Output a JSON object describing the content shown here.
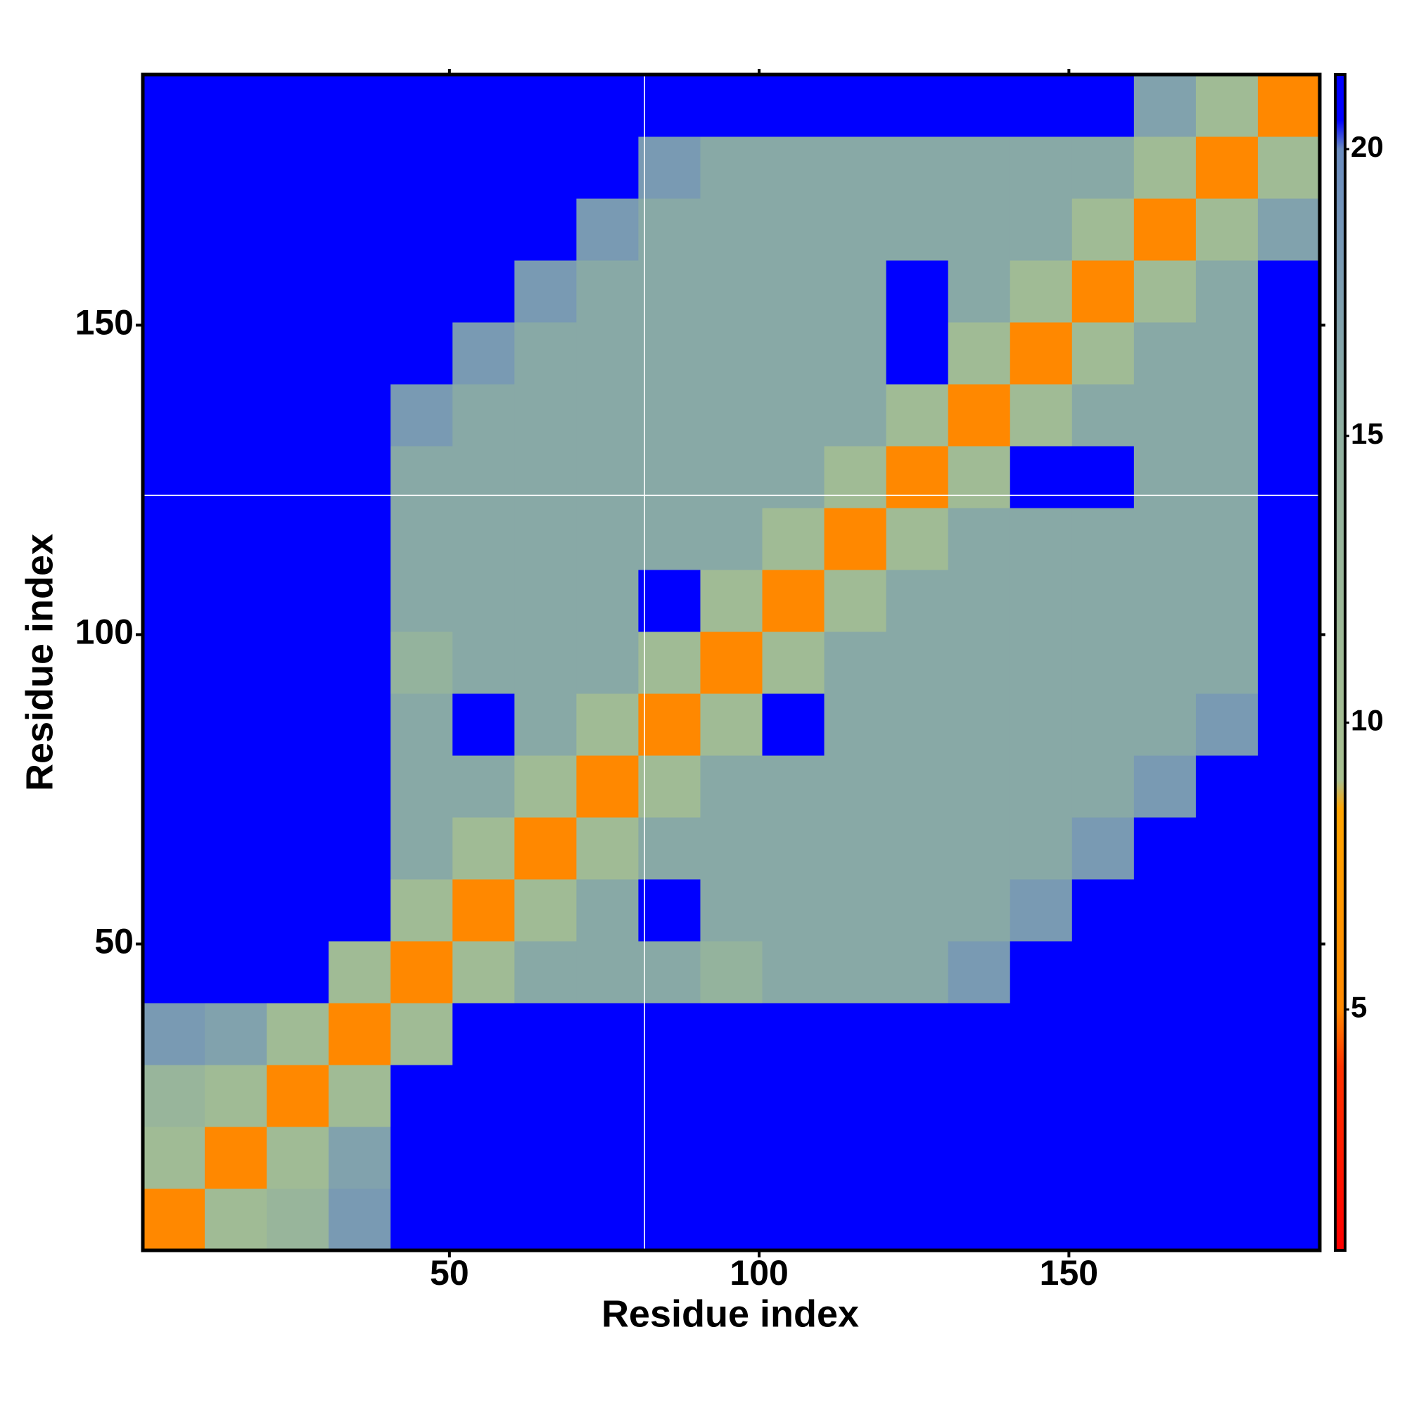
{
  "chart_data": {
    "type": "heatmap",
    "xlabel": "Residue index",
    "ylabel": "Residue index",
    "bins": [
      0.5,
      10.5,
      20.5,
      30.5,
      40.5,
      50.5,
      60.5,
      70.5,
      80.5,
      90.5,
      100.5,
      110.5,
      120.5,
      130.5,
      140.5,
      150.5,
      160.5,
      170.5,
      180.5,
      190.5
    ],
    "xlim": [
      0.5,
      190.5
    ],
    "ylim": [
      0.5,
      190.5
    ],
    "xticks": [
      50,
      100,
      150
    ],
    "yticks": [
      50,
      100,
      150
    ],
    "values": [
      [
        5,
        11,
        13,
        18,
        21,
        21,
        21,
        21,
        21,
        21,
        21,
        21,
        21,
        21,
        21,
        21,
        21,
        21,
        21
      ],
      [
        11,
        5,
        11,
        17,
        21,
        21,
        21,
        21,
        21,
        21,
        21,
        21,
        21,
        21,
        21,
        21,
        21,
        21,
        21
      ],
      [
        13,
        11,
        5,
        11,
        21,
        21,
        21,
        21,
        21,
        21,
        21,
        21,
        21,
        21,
        21,
        21,
        21,
        21,
        21
      ],
      [
        18,
        17,
        11,
        5,
        11,
        21,
        21,
        21,
        21,
        21,
        21,
        21,
        21,
        21,
        21,
        21,
        21,
        21,
        21
      ],
      [
        21,
        21,
        21,
        11,
        5,
        11,
        16,
        16,
        16,
        14,
        16,
        16,
        16,
        18,
        21,
        21,
        21,
        21,
        21
      ],
      [
        21,
        21,
        21,
        21,
        11,
        5,
        11,
        16,
        21,
        16,
        16,
        16,
        16,
        16,
        18,
        21,
        21,
        21,
        21
      ],
      [
        21,
        21,
        21,
        21,
        16,
        11,
        5,
        11,
        16,
        16,
        16,
        16,
        16,
        16,
        16,
        18,
        21,
        21,
        21
      ],
      [
        21,
        21,
        21,
        21,
        16,
        16,
        11,
        5,
        11,
        16,
        16,
        16,
        16,
        16,
        16,
        16,
        18,
        21,
        21
      ],
      [
        21,
        21,
        21,
        21,
        16,
        21,
        16,
        11,
        5,
        11,
        21,
        16,
        16,
        16,
        16,
        16,
        16,
        18,
        21
      ],
      [
        21,
        21,
        21,
        21,
        14,
        16,
        16,
        16,
        11,
        5,
        11,
        16,
        16,
        16,
        16,
        16,
        16,
        16,
        21
      ],
      [
        21,
        21,
        21,
        21,
        16,
        16,
        16,
        16,
        21,
        11,
        5,
        11,
        16,
        16,
        16,
        16,
        16,
        16,
        21
      ],
      [
        21,
        21,
        21,
        21,
        16,
        16,
        16,
        16,
        16,
        16,
        11,
        5,
        11,
        16,
        16,
        16,
        16,
        16,
        21
      ],
      [
        21,
        21,
        21,
        21,
        16,
        16,
        16,
        16,
        16,
        16,
        16,
        11,
        5,
        11,
        21,
        21,
        16,
        16,
        21
      ],
      [
        21,
        21,
        21,
        21,
        18,
        16,
        16,
        16,
        16,
        16,
        16,
        16,
        11,
        5,
        11,
        16,
        16,
        16,
        21
      ],
      [
        21,
        21,
        21,
        21,
        21,
        18,
        16,
        16,
        16,
        16,
        16,
        16,
        21,
        11,
        5,
        11,
        16,
        16,
        21
      ],
      [
        21,
        21,
        21,
        21,
        21,
        21,
        18,
        16,
        16,
        16,
        16,
        16,
        21,
        16,
        11,
        5,
        11,
        16,
        21
      ],
      [
        21,
        21,
        21,
        21,
        21,
        21,
        21,
        18,
        16,
        16,
        16,
        16,
        16,
        16,
        16,
        11,
        5,
        11,
        17
      ],
      [
        21,
        21,
        21,
        21,
        21,
        21,
        21,
        21,
        18,
        16,
        16,
        16,
        16,
        16,
        16,
        16,
        11,
        5,
        11
      ],
      [
        21,
        21,
        21,
        21,
        21,
        21,
        21,
        21,
        21,
        21,
        21,
        21,
        21,
        21,
        21,
        21,
        17,
        11,
        5
      ]
    ],
    "vlines": [
      81.5
    ],
    "hlines": [
      122.5
    ],
    "colorbar": {
      "lim": [
        0.8,
        21.3
      ],
      "ticks": [
        5,
        10,
        15,
        20
      ],
      "colorscale": [
        {
          "value": 0.8,
          "color": "#ff0000"
        },
        {
          "value": 4,
          "color": "#ff3300"
        },
        {
          "value": 5,
          "color": "#ff8800"
        },
        {
          "value": 8.5,
          "color": "#ffa500"
        },
        {
          "value": 9,
          "color": "#a8c090"
        },
        {
          "value": 15,
          "color": "#90b0a0"
        },
        {
          "value": 20,
          "color": "#6a8cc0"
        },
        {
          "value": 20.5,
          "color": "#0000ff"
        }
      ]
    }
  }
}
